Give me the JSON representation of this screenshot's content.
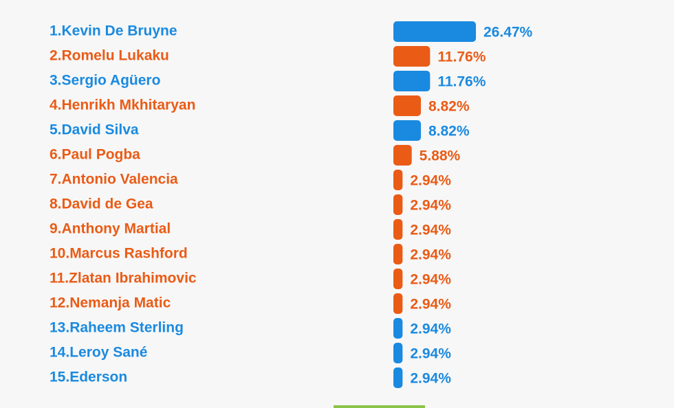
{
  "chart_data": {
    "type": "bar",
    "orientation": "horizontal",
    "categories": [
      "1.Kevin De Bruyne",
      "2.Romelu Lukaku",
      "3.Sergio Agüero",
      "4.Henrikh Mkhitaryan",
      "5.David Silva",
      "6.Paul Pogba",
      "7.Antonio Valencia",
      "8.David de Gea",
      "9.Anthony Martial",
      "10.Marcus Rashford",
      "11.Zlatan Ibrahimovic",
      "12.Nemanja Matic",
      "13.Raheem Sterling",
      "14.Leroy Sané",
      "15.Ederson"
    ],
    "values": [
      26.47,
      11.76,
      11.76,
      8.82,
      8.82,
      5.88,
      2.94,
      2.94,
      2.94,
      2.94,
      2.94,
      2.94,
      2.94,
      2.94,
      2.94
    ],
    "value_labels": [
      "26.47%",
      "11.76%",
      "11.76%",
      "8.82%",
      "8.82%",
      "5.88%",
      "2.94%",
      "2.94%",
      "2.94%",
      "2.94%",
      "2.94%",
      "2.94%",
      "2.94%",
      "2.94%",
      "2.94%"
    ],
    "colors": [
      "#1a8ae0",
      "#ea5b16",
      "#1a8ae0",
      "#ea5b16",
      "#1a8ae0",
      "#ea5b16",
      "#ea5b16",
      "#ea5b16",
      "#ea5b16",
      "#ea5b16",
      "#ea5b16",
      "#ea5b16",
      "#1a8ae0",
      "#1a8ae0",
      "#1a8ae0"
    ]
  }
}
